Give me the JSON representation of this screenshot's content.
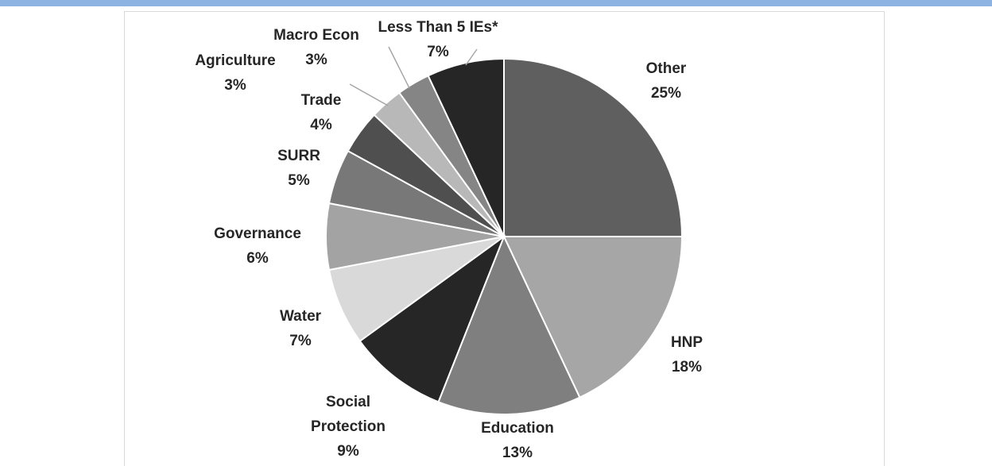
{
  "chart_data": {
    "type": "pie",
    "title": "",
    "slices": [
      {
        "label": "Other",
        "value": 25,
        "value_label": "25%",
        "color": "#5f5f5f"
      },
      {
        "label": "HNP",
        "value": 18,
        "value_label": "18%",
        "color": "#a6a6a6"
      },
      {
        "label": "Education",
        "value": 13,
        "value_label": "13%",
        "color": "#7f7f7f"
      },
      {
        "label": "Social Protection",
        "value": 9,
        "value_label": "9%",
        "color": "#262626"
      },
      {
        "label": "Water",
        "value": 7,
        "value_label": "7%",
        "color": "#d9d9d9"
      },
      {
        "label": "Governance",
        "value": 6,
        "value_label": "6%",
        "color": "#a3a3a3"
      },
      {
        "label": "SURR",
        "value": 5,
        "value_label": "5%",
        "color": "#787878"
      },
      {
        "label": "Trade",
        "value": 4,
        "value_label": "4%",
        "color": "#4f4f4f"
      },
      {
        "label": "Agriculture",
        "value": 3,
        "value_label": "3%",
        "color": "#b8b8b8"
      },
      {
        "label": "Macro Econ",
        "value": 3,
        "value_label": "3%",
        "color": "#858585"
      },
      {
        "label": "Less Than 5 IEs*",
        "value": 7,
        "value_label": "7%",
        "color": "#262626"
      }
    ]
  }
}
